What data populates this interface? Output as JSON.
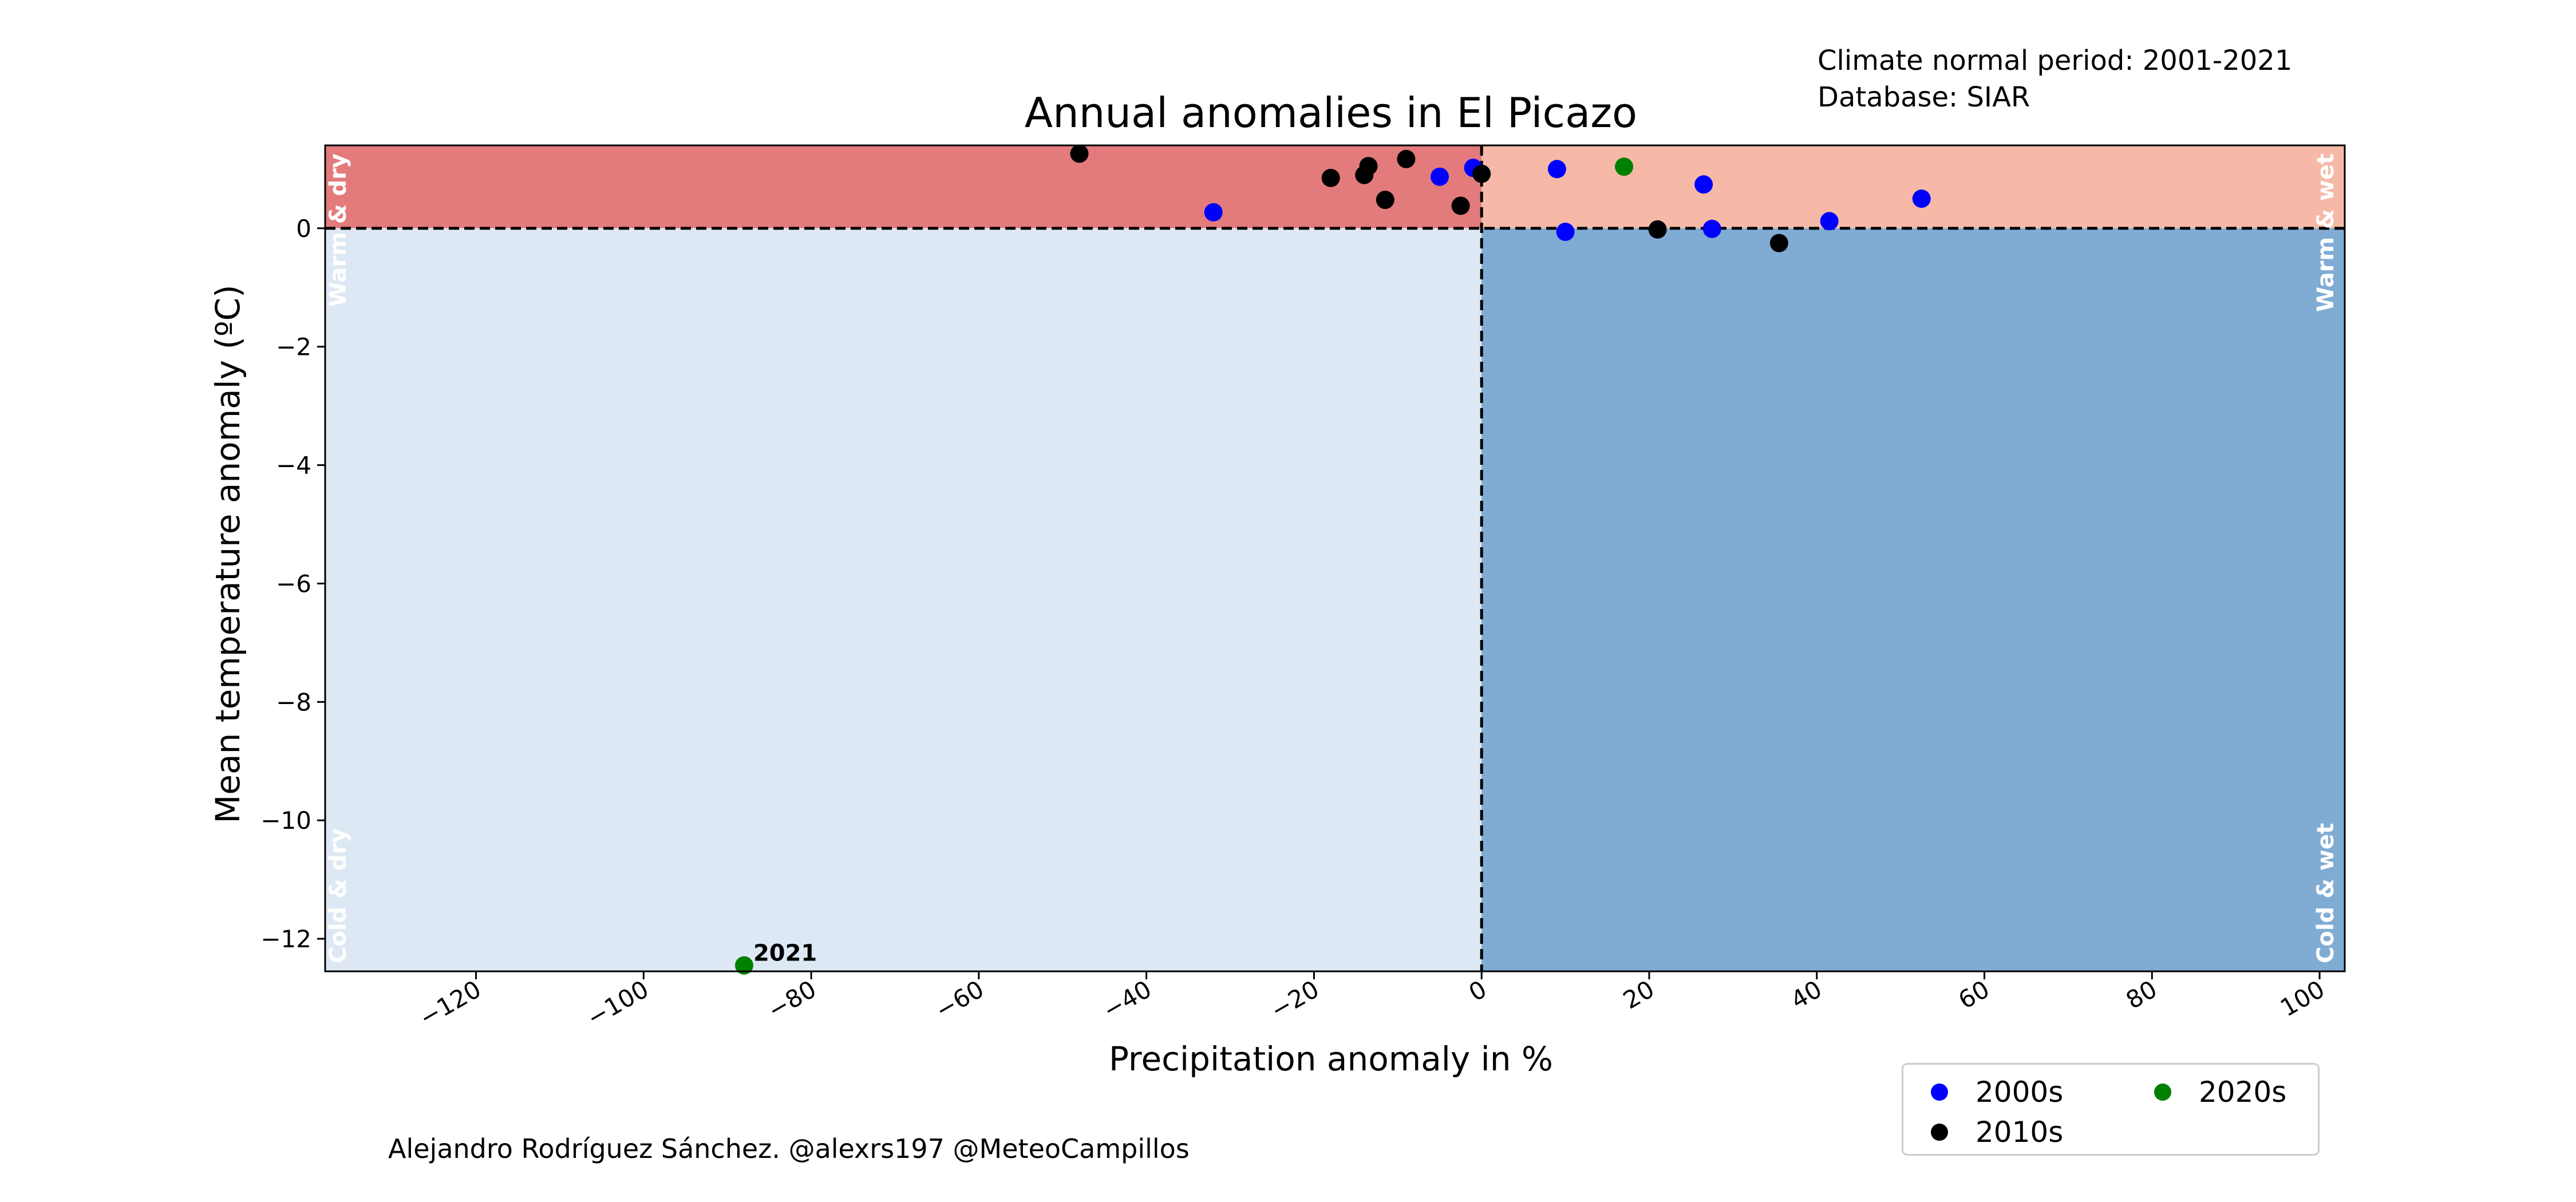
{
  "header": {
    "normal_period": "Climate normal period: 2001-2021",
    "database": "Database: SIAR"
  },
  "credit": "Alejandro Rodríguez Sánchez. @alexrs197 @MeteoCampillos",
  "legend": [
    {
      "label": "2000s",
      "color": "#0000ff"
    },
    {
      "label": "2010s",
      "color": "#000000"
    },
    {
      "label": "2020s",
      "color": "#008000"
    }
  ],
  "chart_data": {
    "type": "scatter",
    "title": "Annual anomalies in El Picazo",
    "xlabel": "Precipitation anomaly in %",
    "ylabel": "Mean temperature anomaly (ºC)",
    "xlim": [
      -138,
      103
    ],
    "ylim": [
      -12.55,
      1.4
    ],
    "xticks": [
      -120,
      -100,
      -80,
      -60,
      -40,
      -20,
      0,
      20,
      40,
      60,
      80,
      100
    ],
    "xtick_labels": [
      "−120",
      "−100",
      "−80",
      "−60",
      "−40",
      "−20",
      "0",
      "20",
      "40",
      "60",
      "80",
      "100"
    ],
    "yticks": [
      0,
      -2,
      -4,
      -6,
      -8,
      -10,
      -12
    ],
    "ytick_labels": [
      "0",
      "−2",
      "−4",
      "−6",
      "−8",
      "−10",
      "−12"
    ],
    "quadrants": [
      {
        "label": "Warm & dry",
        "color": "#e37b7d",
        "x": [
          -138,
          0
        ],
        "y": [
          0,
          1.4
        ]
      },
      {
        "label": "Warm & wet",
        "color": "#f6b9a8",
        "x": [
          0,
          103
        ],
        "y": [
          0,
          1.4
        ]
      },
      {
        "label": "Cold & dry",
        "color": "#dde8f4",
        "x": [
          -138,
          0
        ],
        "y": [
          -12.55,
          0
        ]
      },
      {
        "label": "Cold & wet",
        "color": "#80acd4",
        "x": [
          0,
          103
        ],
        "y": [
          -12.55,
          0
        ]
      }
    ],
    "series": [
      {
        "name": "2000s",
        "color": "#0000ff",
        "points": [
          {
            "x": -32,
            "y": 0.27
          },
          {
            "x": -5,
            "y": 0.87
          },
          {
            "x": -1,
            "y": 1.02
          },
          {
            "x": 9,
            "y": 1.0
          },
          {
            "x": 10,
            "y": -0.06
          },
          {
            "x": 26.5,
            "y": 0.74
          },
          {
            "x": 27.5,
            "y": -0.01
          },
          {
            "x": 41.5,
            "y": 0.12
          },
          {
            "x": 52.5,
            "y": 0.5
          }
        ]
      },
      {
        "name": "2010s",
        "color": "#000000",
        "points": [
          {
            "x": -48,
            "y": 1.26
          },
          {
            "x": -18,
            "y": 0.85
          },
          {
            "x": -14,
            "y": 0.9
          },
          {
            "x": -13.5,
            "y": 1.05
          },
          {
            "x": -11.5,
            "y": 0.48
          },
          {
            "x": -9,
            "y": 1.17
          },
          {
            "x": -2.5,
            "y": 0.38
          },
          {
            "x": 0,
            "y": 0.92
          },
          {
            "x": 21,
            "y": -0.02
          },
          {
            "x": 35.5,
            "y": -0.25
          }
        ]
      },
      {
        "name": "2020s",
        "color": "#008000",
        "points": [
          {
            "x": 17,
            "y": 1.04
          },
          {
            "x": -88,
            "y": -12.45,
            "label": "2021"
          }
        ]
      }
    ]
  }
}
